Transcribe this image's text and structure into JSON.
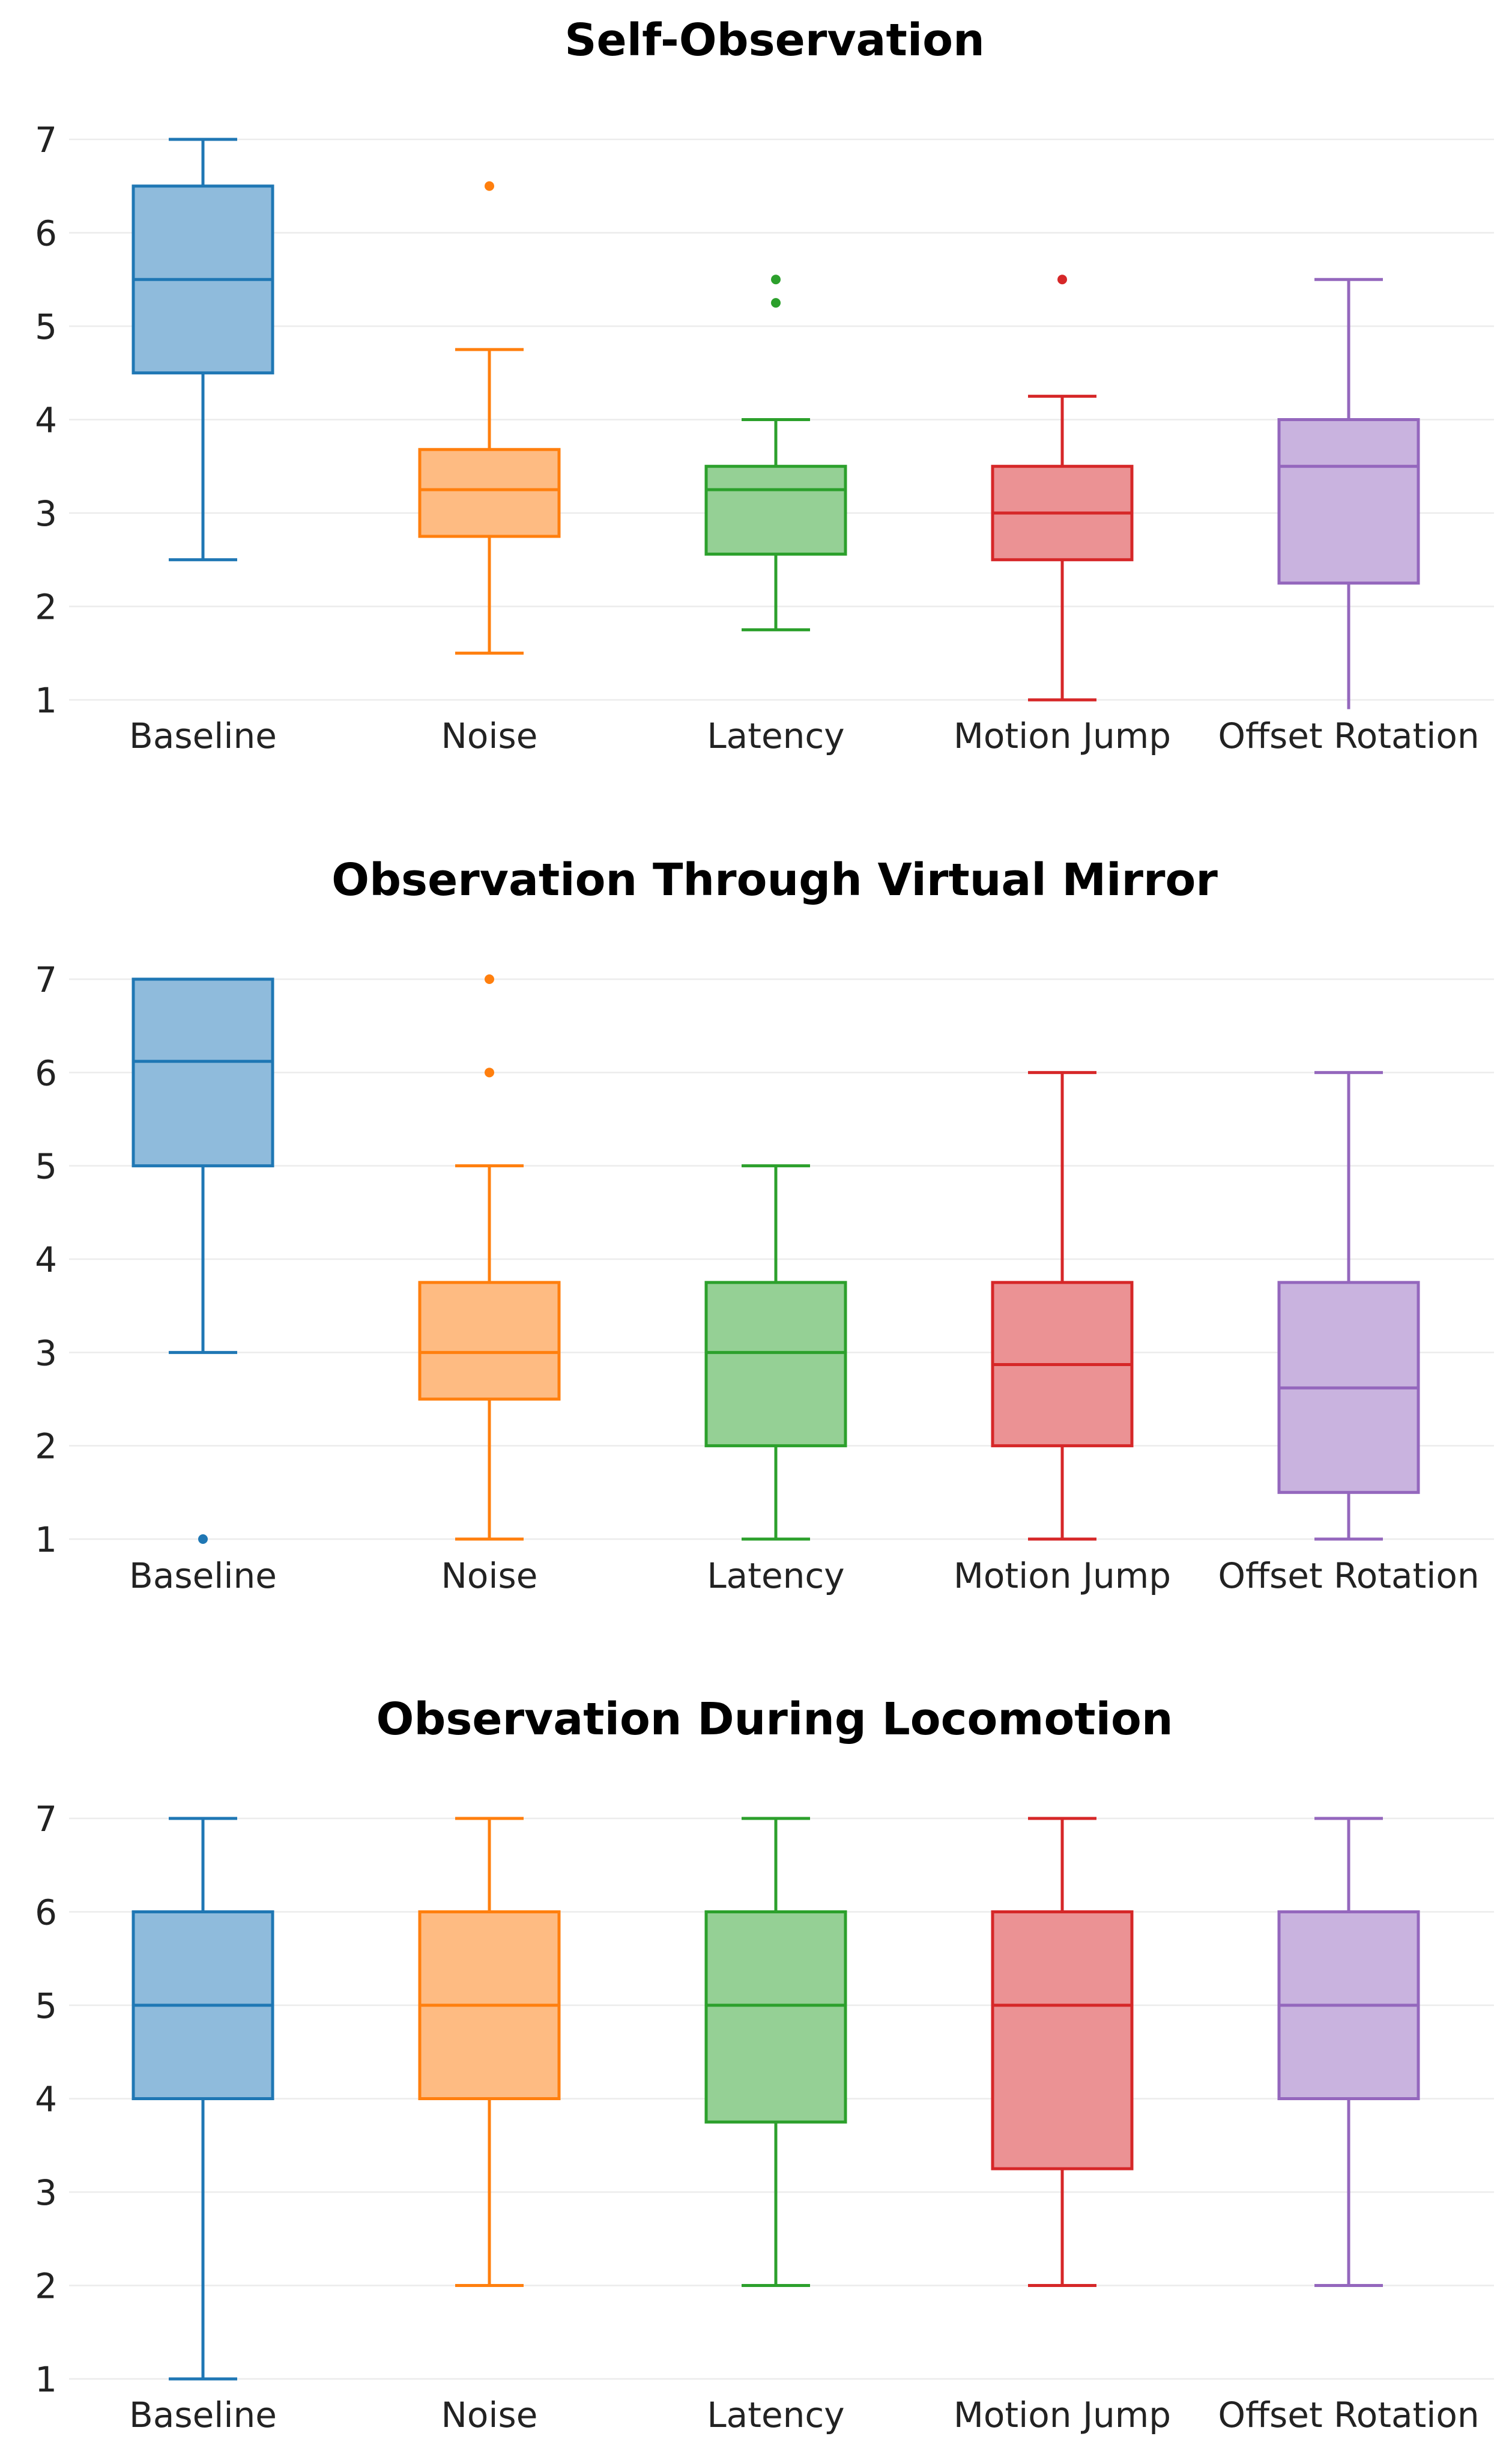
{
  "chart_data": [
    {
      "type": "box",
      "title": "Self-Observation",
      "categories": [
        "Baseline",
        "Noise",
        "Latency",
        "Motion Jump",
        "Offset Rotation"
      ],
      "yticks": [
        1,
        2,
        3,
        4,
        5,
        6,
        7
      ],
      "ylim": [
        0.9,
        7.2
      ],
      "grid": true,
      "boxes": [
        {
          "category": "Baseline",
          "lower_whisker": 2.5,
          "q1": 4.5,
          "median": 5.5,
          "q3": 6.5,
          "upper_whisker": 7.0,
          "outliers": []
        },
        {
          "category": "Noise",
          "lower_whisker": 1.5,
          "q1": 2.75,
          "median": 3.25,
          "q3": 3.68,
          "upper_whisker": 4.75,
          "outliers": [
            6.5
          ]
        },
        {
          "category": "Latency",
          "lower_whisker": 1.75,
          "q1": 2.56,
          "median": 3.25,
          "q3": 3.5,
          "upper_whisker": 4.0,
          "outliers": [
            5.25,
            5.5
          ]
        },
        {
          "category": "Motion Jump",
          "lower_whisker": 1.0,
          "q1": 2.5,
          "median": 3.0,
          "q3": 3.5,
          "upper_whisker": 4.25,
          "outliers": [
            5.5
          ]
        },
        {
          "category": "Offset Rotation",
          "lower_whisker": 0.9,
          "q1": 2.25,
          "median": 3.5,
          "q3": 4.0,
          "upper_whisker": 5.5,
          "outliers": []
        }
      ]
    },
    {
      "type": "box",
      "title": "Observation Through Virtual Mirror",
      "categories": [
        "Baseline",
        "Noise",
        "Latency",
        "Motion Jump",
        "Offset Rotation"
      ],
      "yticks": [
        1,
        2,
        3,
        4,
        5,
        6,
        7
      ],
      "ylim": [
        0.9,
        7.2
      ],
      "grid": true,
      "boxes": [
        {
          "category": "Baseline",
          "lower_whisker": 3.0,
          "q1": 5.0,
          "median": 6.12,
          "q3": 7.0,
          "upper_whisker": 7.0,
          "outliers": [
            1.0
          ]
        },
        {
          "category": "Noise",
          "lower_whisker": 1.0,
          "q1": 2.5,
          "median": 3.0,
          "q3": 3.75,
          "upper_whisker": 5.0,
          "outliers": [
            6.0,
            7.0
          ]
        },
        {
          "category": "Latency",
          "lower_whisker": 1.0,
          "q1": 2.0,
          "median": 3.0,
          "q3": 3.75,
          "upper_whisker": 5.0,
          "outliers": []
        },
        {
          "category": "Motion Jump",
          "lower_whisker": 1.0,
          "q1": 2.0,
          "median": 2.87,
          "q3": 3.75,
          "upper_whisker": 6.0,
          "outliers": []
        },
        {
          "category": "Offset Rotation",
          "lower_whisker": 1.0,
          "q1": 1.5,
          "median": 2.62,
          "q3": 3.75,
          "upper_whisker": 6.0,
          "outliers": []
        }
      ]
    },
    {
      "type": "box",
      "title": "Observation During Locomotion",
      "categories": [
        "Baseline",
        "Noise",
        "Latency",
        "Motion Jump",
        "Offset Rotation"
      ],
      "yticks": [
        1,
        2,
        3,
        4,
        5,
        6,
        7
      ],
      "ylim": [
        0.9,
        7.2
      ],
      "grid": true,
      "boxes": [
        {
          "category": "Baseline",
          "lower_whisker": 1.0,
          "q1": 4.0,
          "median": 5.0,
          "q3": 6.0,
          "upper_whisker": 7.0,
          "outliers": []
        },
        {
          "category": "Noise",
          "lower_whisker": 2.0,
          "q1": 4.0,
          "median": 5.0,
          "q3": 6.0,
          "upper_whisker": 7.0,
          "outliers": []
        },
        {
          "category": "Latency",
          "lower_whisker": 2.0,
          "q1": 3.75,
          "median": 5.0,
          "q3": 6.0,
          "upper_whisker": 7.0,
          "outliers": []
        },
        {
          "category": "Motion Jump",
          "lower_whisker": 2.0,
          "q1": 3.25,
          "median": 5.0,
          "q3": 6.0,
          "upper_whisker": 7.0,
          "outliers": []
        },
        {
          "category": "Offset Rotation",
          "lower_whisker": 2.0,
          "q1": 4.0,
          "median": 5.0,
          "q3": 6.0,
          "upper_whisker": 7.0,
          "outliers": []
        }
      ]
    }
  ],
  "colors": {
    "stroke": [
      "#1f77b4",
      "#ff7f0e",
      "#2ca02c",
      "#d62728",
      "#9467bd"
    ],
    "fill": [
      "#8fbbdc",
      "#febb82",
      "#95d095",
      "#eb9294",
      "#c9b3df"
    ]
  }
}
